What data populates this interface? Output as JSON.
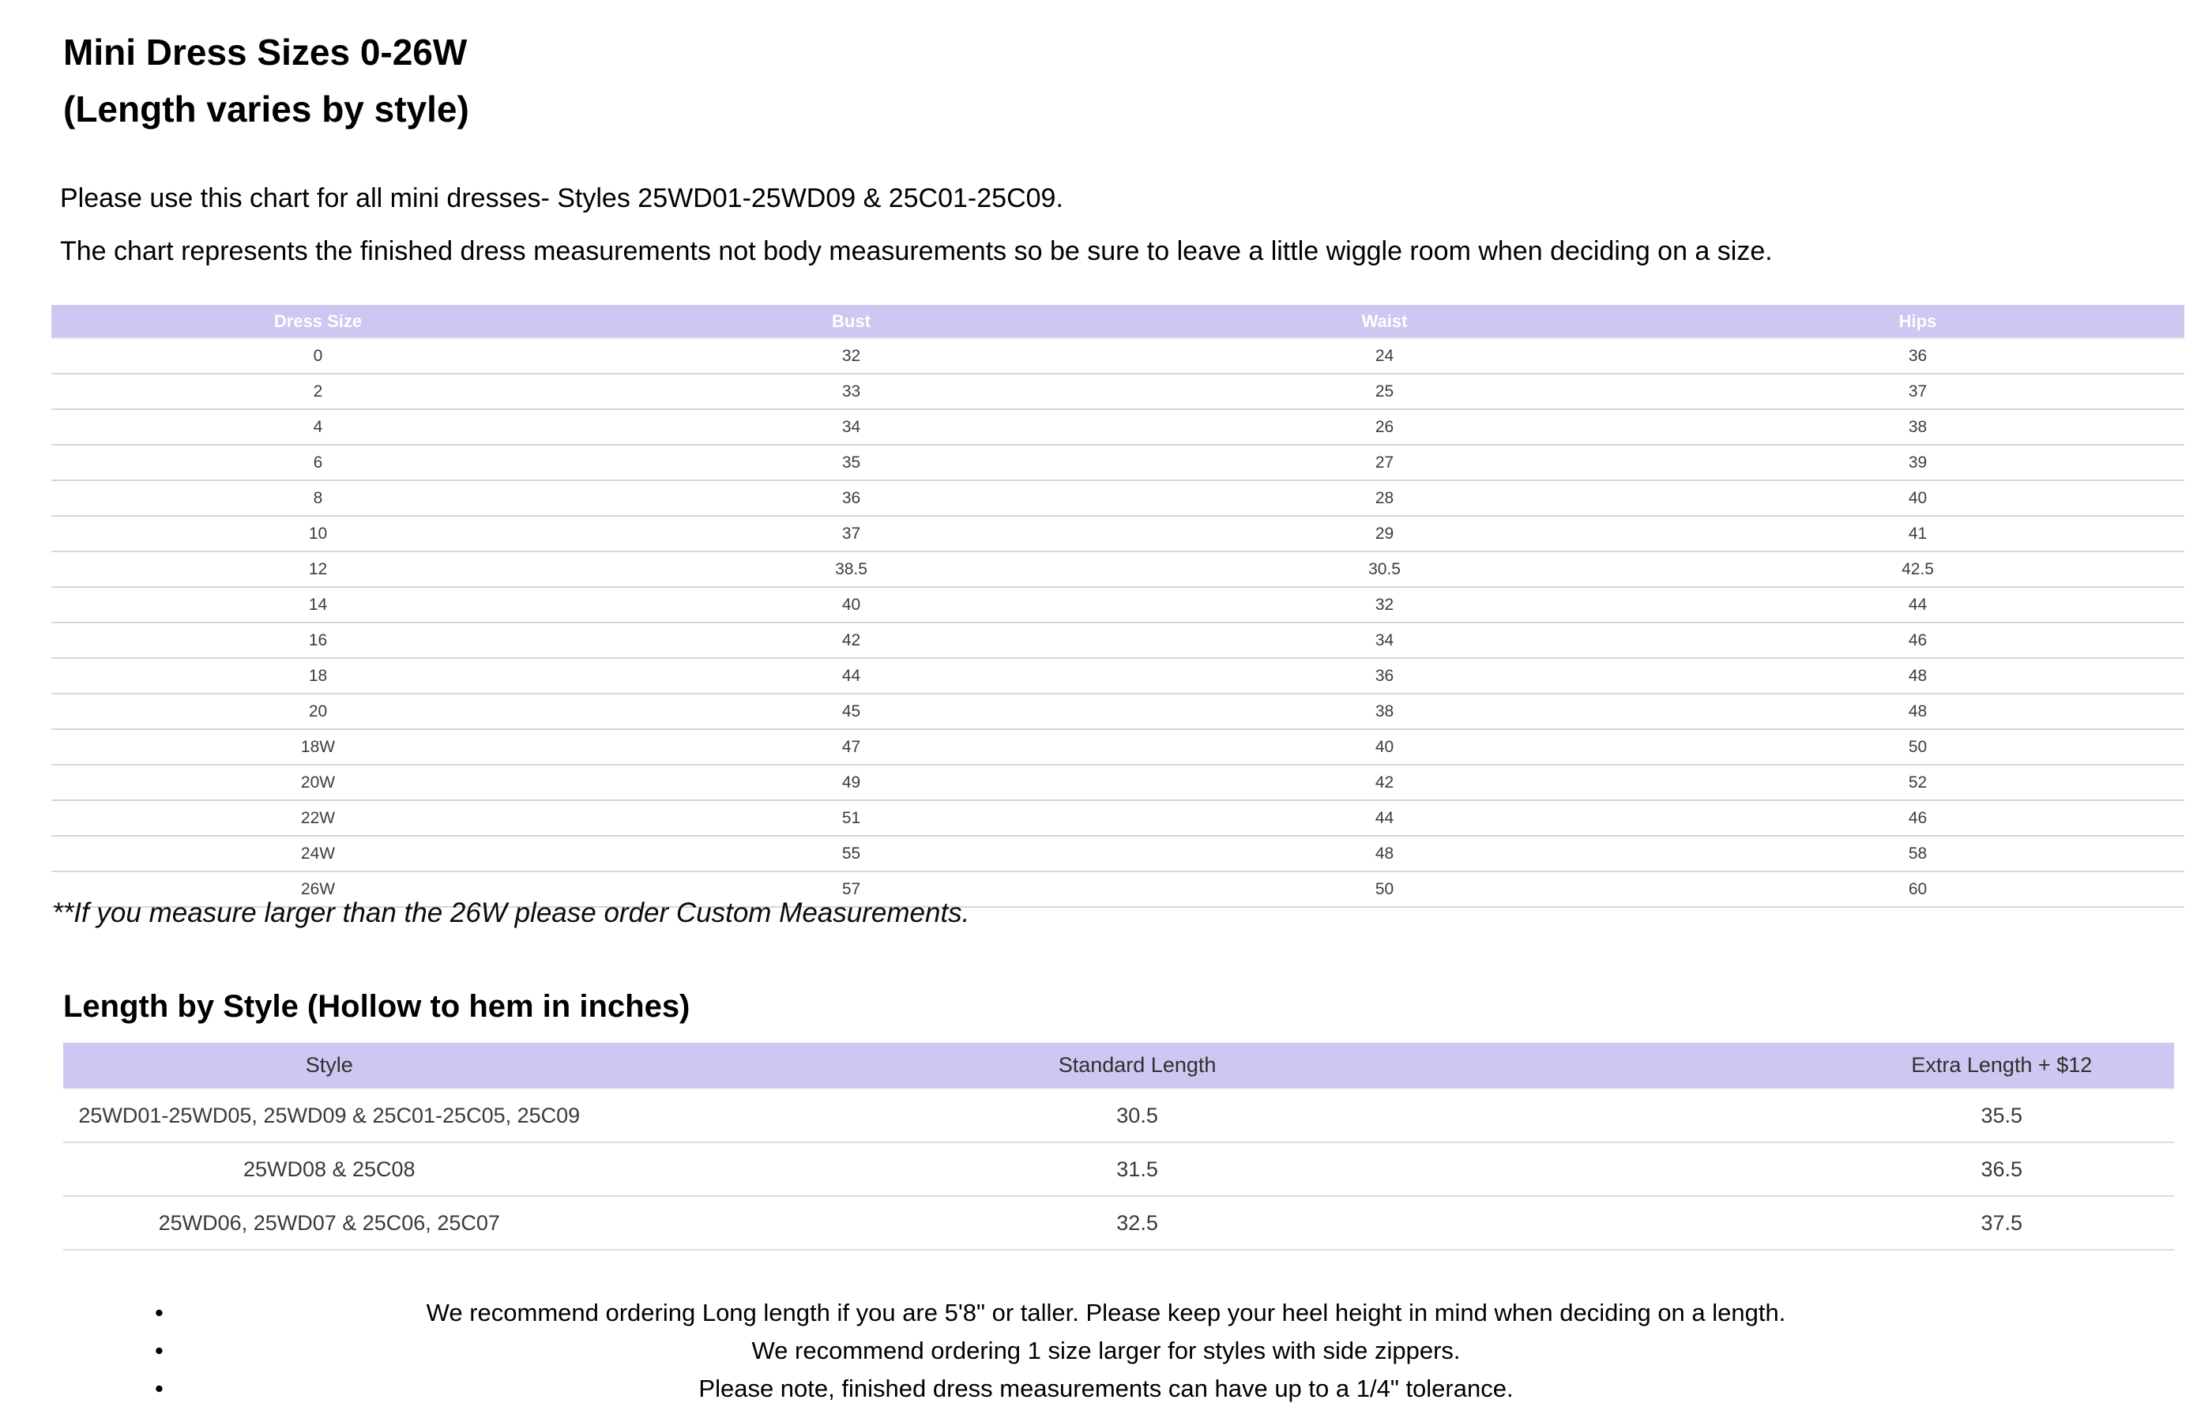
{
  "page": {
    "title_line1": "Mini Dress Sizes 0-26W",
    "title_line2": "(Length varies by style)",
    "intro_line1": "Please use this chart for all mini dresses- Styles 25WD01-25WD09 & 25C01-25C09.",
    "intro_line2": "The chart represents the finished dress measurements not body measurements so be sure to leave a little wiggle room when deciding on a size.",
    "note": "**If you measure larger than the 26W please order Custom Measurements.",
    "section2_heading": "Length by Style (Hollow to hem in inches)"
  },
  "colors": {
    "table_header_bg": "#cdc7f2",
    "size_table_header_text": "#ffffff",
    "length_table_header_text": "#2f2f2f",
    "row_border": "#d2d8dd",
    "cell_text": "#3c3c3c"
  },
  "size_chart": {
    "columns": [
      "Dress Size",
      "Bust",
      "Waist",
      "Hips"
    ],
    "rows": [
      [
        "0",
        "32",
        "24",
        "36"
      ],
      [
        "2",
        "33",
        "25",
        "37"
      ],
      [
        "4",
        "34",
        "26",
        "38"
      ],
      [
        "6",
        "35",
        "27",
        "39"
      ],
      [
        "8",
        "36",
        "28",
        "40"
      ],
      [
        "10",
        "37",
        "29",
        "41"
      ],
      [
        "12",
        "38.5",
        "30.5",
        "42.5"
      ],
      [
        "14",
        "40",
        "32",
        "44"
      ],
      [
        "16",
        "42",
        "34",
        "46"
      ],
      [
        "18",
        "44",
        "36",
        "48"
      ],
      [
        "20",
        "45",
        "38",
        "48"
      ],
      [
        "18W",
        "47",
        "40",
        "50"
      ],
      [
        "20W",
        "49",
        "42",
        "52"
      ],
      [
        "22W",
        "51",
        "44",
        "46"
      ],
      [
        "24W",
        "55",
        "48",
        "58"
      ],
      [
        "26W",
        "57",
        "50",
        "60"
      ]
    ]
  },
  "length_chart": {
    "columns": [
      "Style",
      "Standard Length",
      "Extra Length + $12"
    ],
    "rows": [
      [
        "25WD01-25WD05, 25WD09 & 25C01-25C05, 25C09",
        "30.5",
        "35.5"
      ],
      [
        "25WD08 & 25C08",
        "31.5",
        "36.5"
      ],
      [
        "25WD06, 25WD07 & 25C06, 25C07",
        "32.5",
        "37.5"
      ]
    ]
  },
  "notes_list": [
    "We recommend ordering Long length if you are 5'8\" or taller. Please keep your heel height in mind when deciding on a length.",
    "We recommend ordering 1 size larger for styles with side zippers.",
    "Please note, finished dress measurements can have up to a 1/4\" tolerance."
  ]
}
